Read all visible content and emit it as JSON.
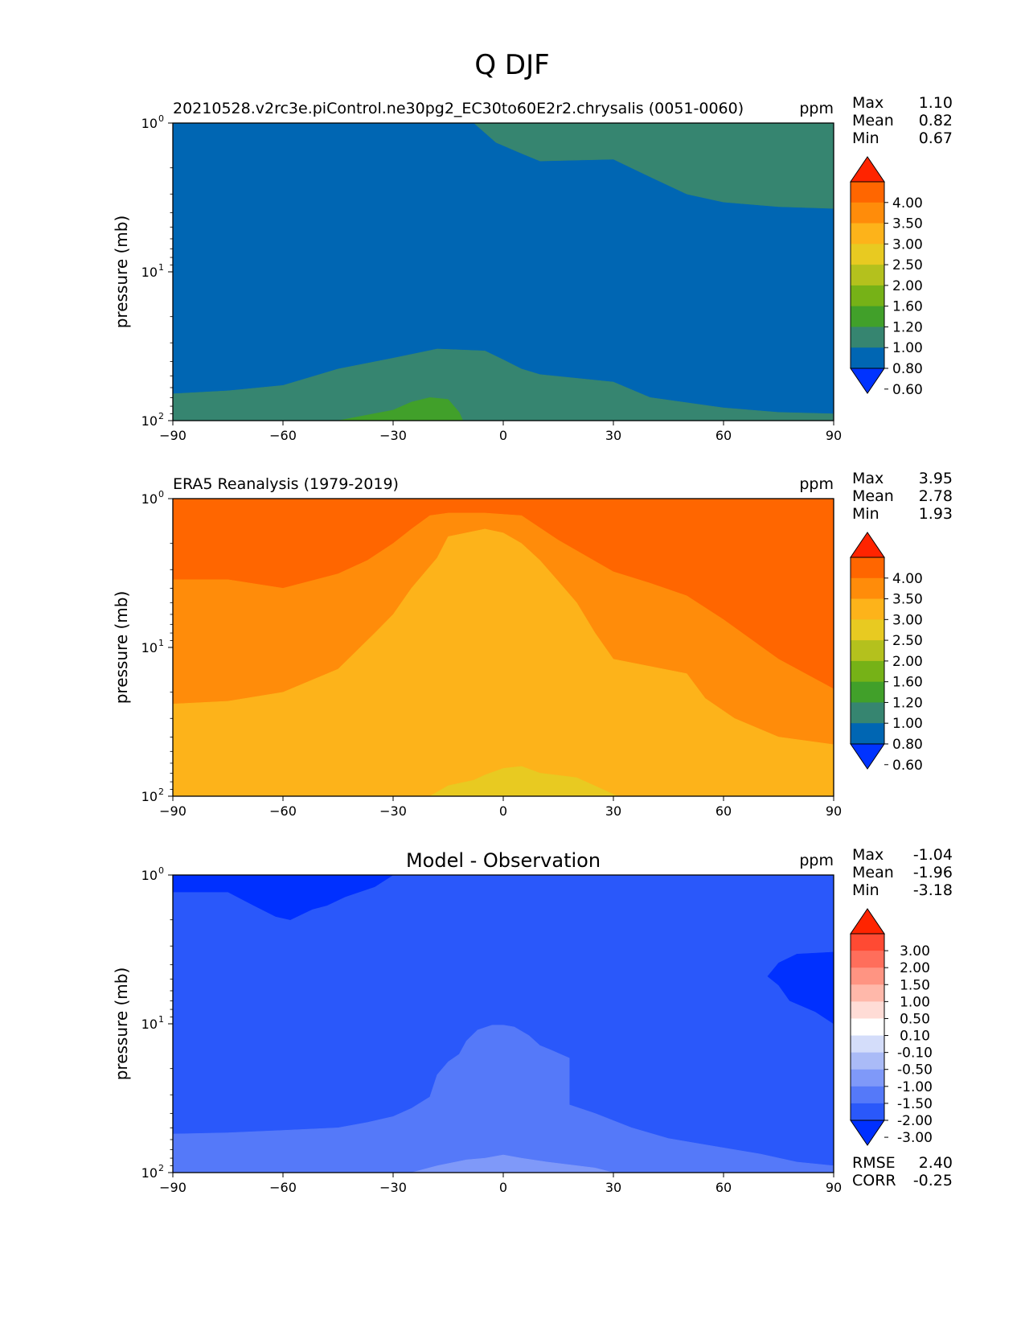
{
  "figure": {
    "title": "Q DJF",
    "ylabel": "pressure (mb)",
    "units": "ppm",
    "xticks": [
      "−90",
      "−60",
      "−30",
      "0",
      "30",
      "60",
      "90"
    ],
    "yticks": [
      "10",
      "10",
      "10"
    ],
    "yexps": [
      "0",
      "1",
      "2"
    ],
    "stat_labels": [
      "Max",
      "Mean",
      "Min"
    ]
  },
  "colors": {
    "abs_levels": [
      "#0033ff",
      "#0066b3",
      "#368570",
      "#41a02a",
      "#76b217",
      "#b4c11d",
      "#e8ca21",
      "#fdb31a",
      "#ff8c0a",
      "#ff6600",
      "#ff2400"
    ],
    "diff_levels": [
      "#0030ff",
      "#2a58fa",
      "#5579f9",
      "#7f99f9",
      "#aabbf7",
      "#d4ddfa",
      "#ffffff",
      "#ffdcd6",
      "#ffb8aa",
      "#ff9482",
      "#ff6e5b",
      "#ff4a33",
      "#ff2400"
    ]
  },
  "chart_data": [
    {
      "type": "contour",
      "title": "20210528.v2rc3e.piControl.ne30pg2_EC30to60E2r2.chrysalis (0051-0060)",
      "units": "ppm",
      "xlabel": "",
      "ylabel": "pressure (mb)",
      "xlim": [
        -90,
        90
      ],
      "ylim_mb": [
        100,
        1
      ],
      "y_scale": "log",
      "stats": {
        "Max": "1.10",
        "Mean": "0.82",
        "Min": "0.67"
      },
      "colorbar": {
        "labels": [
          "4.00",
          "3.50",
          "3.00",
          "2.50",
          "2.00",
          "1.60",
          "1.20",
          "1.00",
          "0.80",
          "0.60"
        ],
        "color_set": "abs_levels"
      },
      "regions": [
        {
          "range": "0.80-1.00",
          "color_index": 1,
          "boundary_bottom": [
            [
              -90,
              100
            ],
            [
              90,
              100
            ],
            [
              90,
              1
            ],
            [
              -90,
              1
            ]
          ]
        },
        {
          "range": "1.00-1.20 (upper)",
          "color_index": 2,
          "boundary": [
            [
              -8,
              1
            ],
            [
              -2,
              1.35
            ],
            [
              5,
              1.6
            ],
            [
              10,
              1.8
            ],
            [
              30,
              1.75
            ],
            [
              40,
              2.3
            ],
            [
              50,
              3.0
            ],
            [
              60,
              3.4
            ],
            [
              75,
              3.65
            ],
            [
              90,
              3.75
            ],
            [
              90,
              1
            ]
          ]
        },
        {
          "range": "1.00-1.20 (lower)",
          "color_index": 2,
          "boundary": [
            [
              -90,
              66
            ],
            [
              -75,
              63
            ],
            [
              -60,
              58
            ],
            [
              -45,
              45
            ],
            [
              -30,
              38
            ],
            [
              -18,
              33
            ],
            [
              -5,
              34
            ],
            [
              0,
              39
            ],
            [
              5,
              45
            ],
            [
              10,
              49
            ],
            [
              30,
              55
            ],
            [
              40,
              70
            ],
            [
              60,
              82
            ],
            [
              75,
              88
            ],
            [
              90,
              90
            ],
            [
              90,
              100
            ],
            [
              -90,
              100
            ]
          ]
        },
        {
          "range": "1.20-1.60",
          "color_index": 3,
          "boundary": [
            [
              -45,
              100
            ],
            [
              -30,
              85
            ],
            [
              -25,
              75
            ],
            [
              -20,
              70
            ],
            [
              -15,
              72
            ],
            [
              -12,
              88
            ],
            [
              -11,
              100
            ]
          ]
        }
      ]
    },
    {
      "type": "contour",
      "title": "ERA5 Reanalysis (1979-2019)",
      "units": "ppm",
      "xlabel": "",
      "ylabel": "pressure (mb)",
      "xlim": [
        -90,
        90
      ],
      "ylim_mb": [
        100,
        1
      ],
      "y_scale": "log",
      "stats": {
        "Max": "3.95",
        "Mean": "2.78",
        "Min": "1.93"
      },
      "colorbar": {
        "labels": [
          "4.00",
          "3.50",
          "3.00",
          "2.50",
          "2.00",
          "1.60",
          "1.20",
          "1.00",
          "0.80",
          "0.60"
        ],
        "color_set": "abs_levels"
      },
      "regions": [
        {
          "range": "3.50-4.00",
          "color_index": 9,
          "boundary_bottom": [
            [
              -90,
              100
            ],
            [
              90,
              100
            ],
            [
              90,
              1
            ],
            [
              -90,
              1
            ]
          ]
        },
        {
          "range": "3.00-3.50",
          "color_index": 8,
          "boundary": [
            [
              -90,
              3.5
            ],
            [
              -75,
              3.5
            ],
            [
              -60,
              4
            ],
            [
              -45,
              3.2
            ],
            [
              -37,
              2.6
            ],
            [
              -30,
              2
            ],
            [
              -25,
              1.6
            ],
            [
              -20,
              1.3
            ],
            [
              -15,
              1.25
            ],
            [
              -5,
              1.25
            ],
            [
              5,
              1.3
            ],
            [
              15,
              1.9
            ],
            [
              30,
              3.1
            ],
            [
              40,
              3.7
            ],
            [
              50,
              4.5
            ],
            [
              60,
              6.5
            ],
            [
              75,
              12
            ],
            [
              90,
              19
            ],
            [
              90,
              45
            ],
            [
              75,
              40
            ],
            [
              63,
              30
            ],
            [
              55,
              22
            ],
            [
              50,
              15
            ],
            [
              30,
              12
            ],
            [
              25,
              8
            ],
            [
              20,
              5
            ],
            [
              15,
              3.6
            ],
            [
              10,
              2.6
            ],
            [
              5,
              2
            ],
            [
              0,
              1.7
            ],
            [
              -5,
              1.6
            ],
            [
              -15,
              1.8
            ],
            [
              -18,
              2.5
            ],
            [
              -25,
              4
            ],
            [
              -30,
              6
            ],
            [
              -35,
              8
            ],
            [
              -45,
              14
            ],
            [
              -60,
              20
            ],
            [
              -75,
              23
            ],
            [
              -90,
              24
            ]
          ]
        },
        {
          "range": "2.50-3.00",
          "color_index": 7,
          "boundary_bottom": [
            [
              -90,
              24
            ],
            [
              -75,
              23
            ],
            [
              -60,
              20
            ],
            [
              -45,
              14
            ],
            [
              -35,
              8
            ],
            [
              -30,
              6
            ],
            [
              -25,
              4
            ],
            [
              -18,
              2.5
            ],
            [
              -15,
              1.8
            ],
            [
              -5,
              1.6
            ],
            [
              0,
              1.7
            ],
            [
              5,
              2
            ],
            [
              10,
              2.6
            ],
            [
              15,
              3.6
            ],
            [
              20,
              5
            ],
            [
              25,
              8
            ],
            [
              30,
              12
            ],
            [
              50,
              15
            ],
            [
              55,
              22
            ],
            [
              63,
              30
            ],
            [
              75,
              40
            ],
            [
              90,
              45
            ],
            [
              90,
              100
            ],
            [
              -90,
              100
            ]
          ]
        },
        {
          "range": "2.00-2.50",
          "color_index": 6,
          "boundary": [
            [
              -20,
              100
            ],
            [
              -15,
              85
            ],
            [
              -8,
              78
            ],
            [
              -5,
              72
            ],
            [
              0,
              65
            ],
            [
              5,
              63
            ],
            [
              10,
              70
            ],
            [
              20,
              75
            ],
            [
              30,
              97
            ],
            [
              31,
              100
            ]
          ]
        }
      ]
    },
    {
      "type": "contour",
      "title": "Model - Observation",
      "units": "ppm",
      "xlabel": "",
      "ylabel": "pressure (mb)",
      "xlim": [
        -90,
        90
      ],
      "ylim_mb": [
        100,
        1
      ],
      "y_scale": "log",
      "stats": {
        "Max": "-1.04",
        "Mean": "-1.96",
        "Min": "-3.18"
      },
      "metrics": {
        "RMSE": "2.40",
        "CORR": "-0.25"
      },
      "colorbar": {
        "labels": [
          "3.00",
          "2.00",
          "1.50",
          "1.00",
          "0.50",
          "0.10",
          "-0.10",
          "-0.50",
          "-1.00",
          "-1.50",
          "-2.00",
          "-3.00"
        ],
        "color_set": "diff_levels"
      },
      "regions": [
        {
          "range": "-3.00 to -2.00",
          "color_index": 1,
          "boundary_bottom": [
            [
              -90,
              100
            ],
            [
              90,
              100
            ],
            [
              90,
              1
            ],
            [
              -90,
              1
            ]
          ]
        },
        {
          "range": "< -3.00 (upper left)",
          "color_index": 0,
          "boundary": [
            [
              -90,
              1
            ],
            [
              -30,
              1
            ],
            [
              -35,
              1.2
            ],
            [
              -43,
              1.4
            ],
            [
              -48,
              1.6
            ],
            [
              -52,
              1.7
            ],
            [
              -58,
              2
            ],
            [
              -62,
              1.9
            ],
            [
              -68,
              1.6
            ],
            [
              -75,
              1.3
            ],
            [
              -90,
              1.3
            ]
          ]
        },
        {
          "range": "< -3.00 (upper right)",
          "color_index": 0,
          "boundary": [
            [
              90,
              3.3
            ],
            [
              80,
              3.4
            ],
            [
              75,
              3.9
            ],
            [
              72,
              4.8
            ],
            [
              75,
              5.5
            ],
            [
              78,
              7
            ],
            [
              85,
              8.3
            ],
            [
              90,
              10
            ],
            [
              90,
              3.3
            ]
          ]
        },
        {
          "range": "-2.00 to -1.50",
          "color_index": 2,
          "boundary": [
            [
              -90,
              100
            ],
            [
              -90,
              55
            ],
            [
              -75,
              54
            ],
            [
              -60,
              52
            ],
            [
              -45,
              50
            ],
            [
              -37,
              46
            ],
            [
              -30,
              42
            ],
            [
              -25,
              37
            ],
            [
              -20,
              31
            ],
            [
              -18,
              22
            ],
            [
              -15,
              18
            ],
            [
              -12,
              16
            ],
            [
              -10,
              13
            ],
            [
              -7,
              11
            ],
            [
              -3,
              10.2
            ],
            [
              0,
              10.2
            ],
            [
              3,
              10.5
            ],
            [
              7,
              12
            ],
            [
              10,
              14
            ],
            [
              13,
              15
            ],
            [
              18,
              17
            ],
            [
              18,
              35
            ],
            [
              25,
              40
            ],
            [
              35,
              50
            ],
            [
              45,
              59
            ],
            [
              55,
              65
            ],
            [
              70,
              75
            ],
            [
              80,
              85
            ],
            [
              90,
              90
            ],
            [
              90,
              100
            ]
          ]
        },
        {
          "range": "-1.50 to -1.00",
          "color_index": 3,
          "boundary": [
            [
              -25,
              100
            ],
            [
              -18,
              90
            ],
            [
              -10,
              82
            ],
            [
              -5,
              80
            ],
            [
              0,
              76
            ],
            [
              5,
              80
            ],
            [
              12,
              85
            ],
            [
              25,
              93
            ],
            [
              30,
              100
            ]
          ]
        }
      ]
    }
  ]
}
